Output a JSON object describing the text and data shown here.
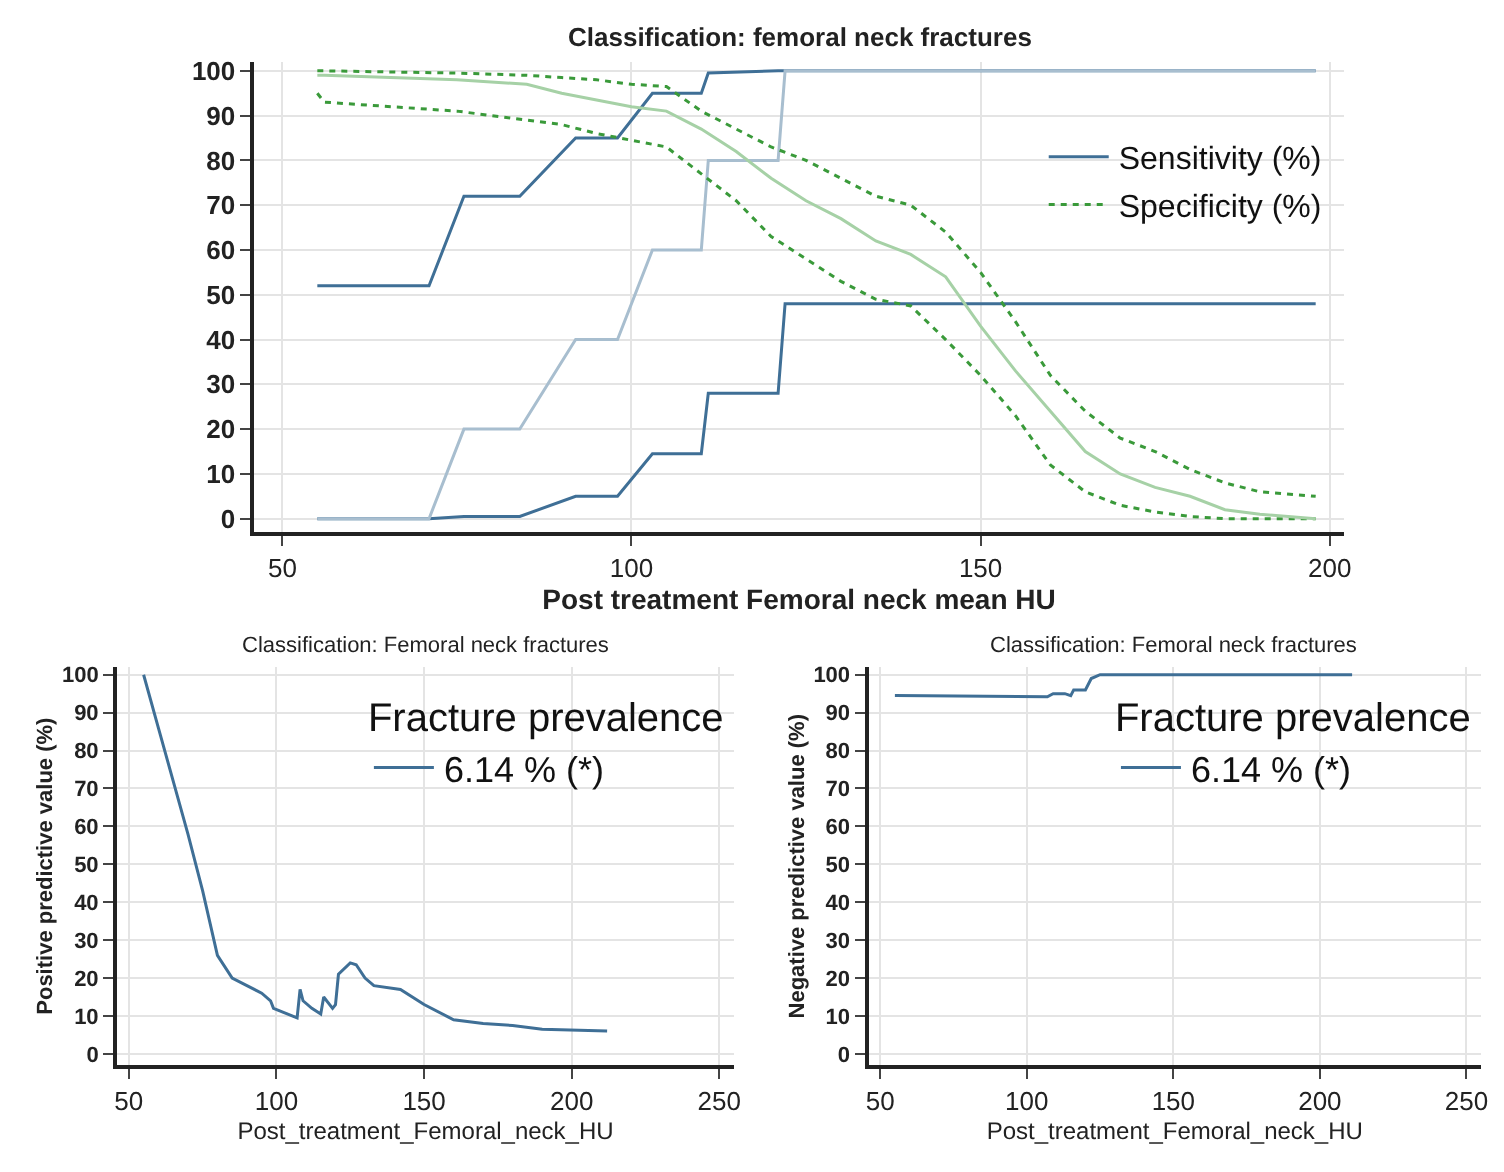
{
  "chart_data": [
    {
      "type": "line",
      "title": "Classification: femoral neck fractures",
      "xlabel": "Post treatment Femoral neck mean HU",
      "xlim": [
        46,
        202
      ],
      "xticks": [
        50,
        100,
        150,
        200
      ],
      "ylim": [
        -3,
        102
      ],
      "yticks": [
        0,
        10,
        20,
        30,
        40,
        50,
        60,
        70,
        80,
        90,
        100
      ],
      "grid": true,
      "legend": "top right",
      "series": [
        {
          "name": "Sensitivity (%)",
          "color": "#3f6f96",
          "line_style": "solid",
          "x": [
            55,
            71,
            76,
            84,
            92,
            98,
            103,
            110,
            111,
            121,
            122,
            198
          ],
          "values": [
            52,
            52,
            72,
            72,
            85,
            85,
            95,
            95,
            99.5,
            100,
            100,
            100
          ]
        },
        {
          "color": "#3f6f96",
          "line_style": "solid",
          "x": [
            55,
            71,
            76,
            84,
            92,
            98,
            103,
            110,
            111,
            121,
            122,
            198
          ],
          "values": [
            0,
            0,
            0.5,
            0.5,
            5,
            5,
            14.5,
            14.5,
            28,
            28,
            48,
            48
          ]
        },
        {
          "color": "#a8becf",
          "line_style": "solid",
          "x": [
            55,
            71,
            76,
            84,
            92,
            98,
            103,
            110,
            111,
            121,
            122,
            198
          ],
          "values": [
            0,
            0,
            20,
            20,
            40,
            40,
            60,
            60,
            80,
            80,
            100,
            100
          ]
        },
        {
          "name": "Specificity (%)",
          "color": "#3a9a3a",
          "line_style": "dotted",
          "x": [
            55,
            56,
            75,
            85,
            90,
            95,
            100,
            105,
            110,
            115,
            120,
            125,
            130,
            135,
            140,
            145,
            150,
            155,
            160,
            165,
            170,
            175,
            180,
            185,
            190,
            198
          ],
          "values": [
            100,
            100,
            99.5,
            99,
            98.5,
            98,
            97,
            96.5,
            91,
            87,
            83,
            80,
            76,
            72,
            70,
            64,
            55,
            44,
            32,
            24,
            18,
            15,
            11,
            8,
            6,
            5
          ]
        },
        {
          "color": "#3a9a3a",
          "line_style": "dotted",
          "x": [
            55,
            56,
            75,
            85,
            90,
            95,
            100,
            105,
            110,
            115,
            120,
            125,
            130,
            135,
            140,
            145,
            150,
            155,
            160,
            165,
            170,
            175,
            180,
            185,
            190,
            198
          ],
          "values": [
            95,
            93,
            91,
            89,
            88,
            86,
            84.5,
            83,
            77,
            71,
            63,
            58,
            53,
            49,
            47.5,
            40,
            32,
            23,
            12,
            6,
            3,
            1.5,
            0.5,
            0,
            0,
            0
          ]
        },
        {
          "color": "#a6d1a6",
          "line_style": "solid",
          "x": [
            55,
            56,
            75,
            85,
            90,
            95,
            100,
            105,
            110,
            115,
            120,
            125,
            130,
            135,
            140,
            145,
            150,
            155,
            160,
            165,
            170,
            175,
            180,
            185,
            190,
            198
          ],
          "values": [
            99,
            99,
            98,
            97,
            95,
            93.5,
            92,
            91,
            87,
            82,
            76,
            71,
            67,
            62,
            59,
            54,
            43,
            33,
            24,
            15,
            10,
            7,
            5,
            2,
            1,
            0
          ]
        }
      ]
    },
    {
      "type": "line",
      "title": "Classification: Femoral neck fractures",
      "xlabel": "Post_treatment_Femoral_neck_HU",
      "ylabel": "Positive predictive value (%)",
      "xlim": [
        46,
        255
      ],
      "xticks": [
        50,
        100,
        150,
        200,
        250
      ],
      "ylim": [
        -3,
        102
      ],
      "yticks": [
        0,
        10,
        20,
        30,
        40,
        50,
        60,
        70,
        80,
        90,
        100
      ],
      "grid": true,
      "legend": "top right",
      "legend_title": "Fracture prevalence",
      "series": [
        {
          "name": "6.14 % (*)",
          "color": "#3f6f96",
          "x": [
            55,
            60,
            65,
            70,
            75,
            80,
            85,
            90,
            95,
            98,
            99,
            107,
            108,
            109,
            112,
            115,
            116,
            119,
            120,
            121,
            125,
            127,
            130,
            133,
            142,
            150,
            160,
            170,
            180,
            190,
            212
          ],
          "values": [
            100,
            86,
            72,
            58,
            43,
            26,
            20,
            18,
            16,
            14,
            12,
            9.5,
            17,
            14,
            12,
            10.5,
            15,
            12,
            13,
            21,
            24,
            23.5,
            20,
            18,
            17,
            13,
            9,
            8,
            7.5,
            6.5,
            6
          ]
        }
      ]
    },
    {
      "type": "line",
      "title": "Classification: Femoral neck fractures",
      "xlabel": "Post_treatment_Femoral_neck_HU",
      "ylabel": "Negative predictive value (%)",
      "xlim": [
        46,
        255
      ],
      "xticks": [
        50,
        100,
        150,
        200,
        250
      ],
      "ylim": [
        -3,
        102
      ],
      "yticks": [
        0,
        10,
        20,
        30,
        40,
        50,
        60,
        70,
        80,
        90,
        100
      ],
      "grid": true,
      "legend": "top right",
      "legend_title": "Fracture prevalence",
      "series": [
        {
          "name": "6.14 % (*)",
          "color": "#3f6f96",
          "x": [
            55,
            107,
            109,
            113,
            115,
            116,
            120,
            122,
            125,
            211
          ],
          "values": [
            94.5,
            94.2,
            95,
            95,
            94.5,
            96,
            96,
            99,
            100,
            100
          ]
        }
      ]
    }
  ]
}
